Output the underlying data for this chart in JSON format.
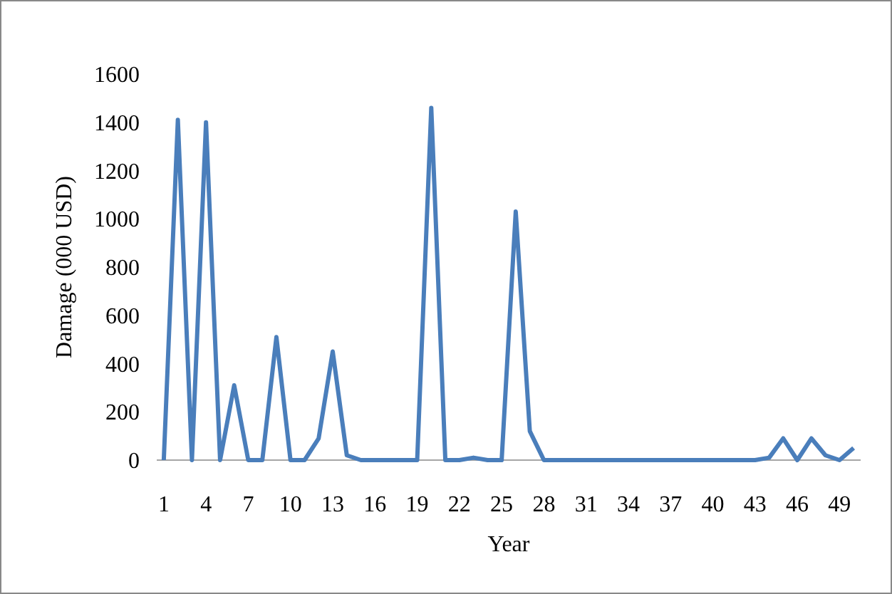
{
  "chart_data": {
    "type": "line",
    "xlabel": "Year",
    "ylabel": "Damage (000 USD)",
    "categories": [
      "1",
      null,
      null,
      "4",
      null,
      null,
      "7",
      null,
      null,
      "10",
      null,
      null,
      "13",
      null,
      null,
      "16",
      null,
      null,
      "19",
      null,
      null,
      "22",
      null,
      null,
      "25",
      null,
      null,
      "28",
      null,
      null,
      "31",
      null,
      null,
      "34",
      null,
      null,
      "37",
      null,
      null,
      "40",
      null,
      null,
      "43",
      null,
      null,
      "46",
      null,
      null,
      "49",
      null
    ],
    "series": [
      {
        "color": "#4a7ebb",
        "values": [
          0,
          1410,
          0,
          1400,
          0,
          310,
          0,
          0,
          510,
          0,
          0,
          90,
          450,
          20,
          0,
          0,
          0,
          0,
          0,
          1460,
          0,
          0,
          10,
          0,
          0,
          1030,
          120,
          0,
          0,
          0,
          0,
          0,
          0,
          0,
          0,
          0,
          0,
          0,
          0,
          0,
          0,
          0,
          0,
          10,
          90,
          0,
          90,
          20,
          0,
          50
        ]
      }
    ],
    "ylim": [
      0,
      1600
    ],
    "yticks": [
      0,
      200,
      400,
      600,
      800,
      1000,
      1200,
      1400,
      1600
    ],
    "grid": false,
    "marker": "none",
    "line_style": "solid"
  }
}
